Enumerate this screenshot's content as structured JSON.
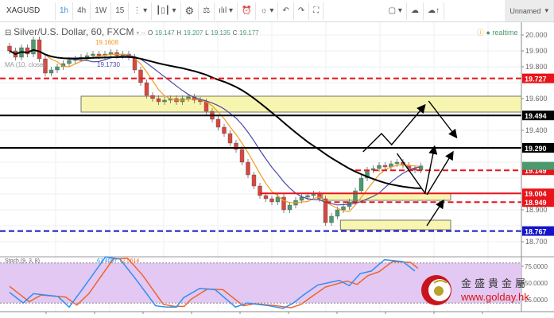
{
  "toolbar": {
    "symbol": "XAGUSD",
    "intervals": [
      "1h",
      "4h",
      "1W",
      "15"
    ],
    "active_interval": "1h",
    "more_label": "⋮ ▾",
    "icons": [
      "candles-icon",
      "gear-icon",
      "scale-icon",
      "indicators-icon",
      "alert-icon",
      "lightbulb-icon",
      "undo-icon",
      "redo-icon",
      "fullscreen-icon",
      "layout-icon",
      "cloud-icon",
      "cloud-upload-icon"
    ],
    "layout_name": "Unnamed",
    "dropdown": "▾"
  },
  "legend": {
    "title": "Silver/U.S. Dollar, 60, FXCM",
    "ohlc": {
      "o_label": "O",
      "o": "19.147",
      "h_label": "H",
      "h": "19.207",
      "l_label": "L",
      "l": "19.135",
      "c_label": "C",
      "c": "19.177"
    },
    "ma1_value": "19.1608",
    "ma2_label": "MA (10, close)",
    "ma2_value": "19.1730",
    "realtime": "realtime",
    "stoch_label": "Stoch (9, 3, 8)",
    "stoch_k": "67.4097",
    "stoch_d": "72.5614"
  },
  "watermark": {
    "symbol": "XAGUSD, 60",
    "name": "Silver/U.S. Dollar"
  },
  "logo": {
    "chinese": "金盛貴金屬",
    "url": "www.golday.hk"
  },
  "colors": {
    "up": "#4a9a6e",
    "down": "#d9463e",
    "ma_fast": "#f29b1d",
    "ma_mid": "#4a4aa8",
    "ma_slow": "#000000",
    "stoch_k": "#2f8ff0",
    "stoch_d": "#f0632b",
    "stoch_bg": "#e2c8f2",
    "zone": "#f8f5b0"
  },
  "chart_data": {
    "type": "candlestick",
    "price_axis": {
      "ticks": [
        "20.000",
        "19.900",
        "19.800",
        "19.600",
        "19.400",
        "18.900",
        "18.700"
      ],
      "range": [
        18.66,
        20.08
      ]
    },
    "closes": [
      19.9,
      19.86,
      19.92,
      19.88,
      19.97,
      19.85,
      19.76,
      19.78,
      19.8,
      19.82,
      19.84,
      19.85,
      19.86,
      19.87,
      19.88,
      19.87,
      19.88,
      19.89,
      19.87,
      19.88,
      19.86,
      19.78,
      19.7,
      19.62,
      19.6,
      19.58,
      19.59,
      19.6,
      19.58,
      19.6,
      19.61,
      19.59,
      19.58,
      19.52,
      19.47,
      19.42,
      19.38,
      19.32,
      19.28,
      19.2,
      19.12,
      19.05,
      18.99,
      18.97,
      18.95,
      18.98,
      18.9,
      18.93,
      18.96,
      18.98,
      18.99,
      19.0,
      18.97,
      18.82,
      18.86,
      18.9,
      18.92,
      18.95,
      19.02,
      19.1,
      19.15,
      19.16,
      19.18,
      19.17,
      19.19,
      19.2,
      19.18,
      19.16,
      19.15,
      19.177
    ],
    "moving_averages": [
      {
        "period": 5,
        "color": "ma_fast"
      },
      {
        "period": 10,
        "color": "ma_mid"
      },
      {
        "period": 30,
        "color": "ma_slow"
      }
    ],
    "levels": [
      {
        "price": 19.727,
        "label": "19.727",
        "color": "#e8141a",
        "style": "dashed",
        "from_bar": -1
      },
      {
        "price": 19.494,
        "label": "19.494",
        "color": "#000000",
        "style": "solid",
        "from_bar": -1
      },
      {
        "price": 19.29,
        "label": "19.290",
        "color": "#000000",
        "style": "solid",
        "from_bar": -1
      },
      {
        "price": 19.149,
        "label": "19.149",
        "color": "#e8141a",
        "style": "dashed",
        "from_bar": 58
      },
      {
        "price": 19.004,
        "label": "19.004",
        "color": "#e8141a",
        "style": "solid",
        "from_bar": 42
      },
      {
        "price": 18.949,
        "label": "18.949",
        "color": "#e8141a",
        "style": "dashed",
        "from_bar": 53
      },
      {
        "price": 18.767,
        "label": "18.767",
        "color": "#1414c8",
        "style": "dashed",
        "from_bar": -1
      }
    ],
    "zones": [
      {
        "from_bar": 12,
        "to_bar": null,
        "top": 19.615,
        "bottom": 19.515
      },
      {
        "from_bar": 52.5,
        "to_bar": 74,
        "top": 19.005,
        "bottom": 18.96
      },
      {
        "from_bar": 55.5,
        "to_bar": 74,
        "top": 18.835,
        "bottom": 18.775
      }
    ],
    "arrows": [
      {
        "points": [
          [
            59.3,
            19.265
          ],
          [
            62.4,
            19.38
          ],
          [
            64.1,
            19.31
          ],
          [
            69.7,
            19.56
          ]
        ]
      },
      {
        "points": [
          [
            70.3,
            19.585
          ],
          [
            75,
            19.355
          ]
        ]
      },
      {
        "points": [
          [
            65,
            19.255
          ],
          [
            69.7,
            19.005
          ],
          [
            71.3,
            19.3
          ]
        ]
      },
      {
        "points": [
          [
            70,
            18.995
          ],
          [
            74.4,
            19.265
          ]
        ]
      },
      {
        "points": [
          [
            70,
            18.8
          ],
          [
            72.8,
            18.96
          ]
        ]
      }
    ],
    "stochastic": {
      "levels": [
        80,
        20
      ],
      "axis_ticks": [
        "75.0000",
        "50.0000",
        "25.0000"
      ],
      "k": [
        [
          0,
          36
        ],
        [
          2.3,
          20
        ],
        [
          4,
          34
        ],
        [
          8.1,
          30
        ],
        [
          10,
          14
        ],
        [
          12,
          38
        ],
        [
          16.1,
          89
        ],
        [
          18.5,
          86
        ],
        [
          21,
          58
        ],
        [
          24.5,
          16
        ],
        [
          26.3,
          14
        ],
        [
          28,
          14
        ],
        [
          29.2,
          28
        ],
        [
          31.9,
          42
        ],
        [
          34.5,
          40
        ],
        [
          37.9,
          14
        ],
        [
          39.9,
          20
        ],
        [
          43.5,
          16
        ],
        [
          45.9,
          12
        ],
        [
          47.6,
          20
        ],
        [
          49.3,
          32
        ],
        [
          51.7,
          47
        ],
        [
          55.3,
          54
        ],
        [
          57,
          46
        ],
        [
          58.8,
          64
        ],
        [
          60.7,
          68
        ],
        [
          62.9,
          85
        ],
        [
          66,
          82
        ],
        [
          68,
          68
        ]
      ],
      "d": [
        [
          0,
          45
        ],
        [
          3.3,
          22
        ],
        [
          5.3,
          32
        ],
        [
          9.4,
          29
        ],
        [
          11.3,
          17
        ],
        [
          13.3,
          34
        ],
        [
          17.4,
          86
        ],
        [
          19.8,
          87
        ],
        [
          22.3,
          62
        ],
        [
          25.8,
          18
        ],
        [
          27.6,
          15
        ],
        [
          29.3,
          15
        ],
        [
          30.5,
          26
        ],
        [
          33.2,
          41
        ],
        [
          35.8,
          40
        ],
        [
          39.2,
          16
        ],
        [
          41.2,
          19
        ],
        [
          44.8,
          16
        ],
        [
          47.2,
          13
        ],
        [
          48.9,
          18
        ],
        [
          50.6,
          29
        ],
        [
          53,
          44
        ],
        [
          56.6,
          53
        ],
        [
          58.3,
          48
        ],
        [
          60.1,
          61
        ],
        [
          62,
          67
        ],
        [
          64.2,
          82
        ],
        [
          67.3,
          81
        ],
        [
          68.5,
          72
        ]
      ]
    }
  }
}
